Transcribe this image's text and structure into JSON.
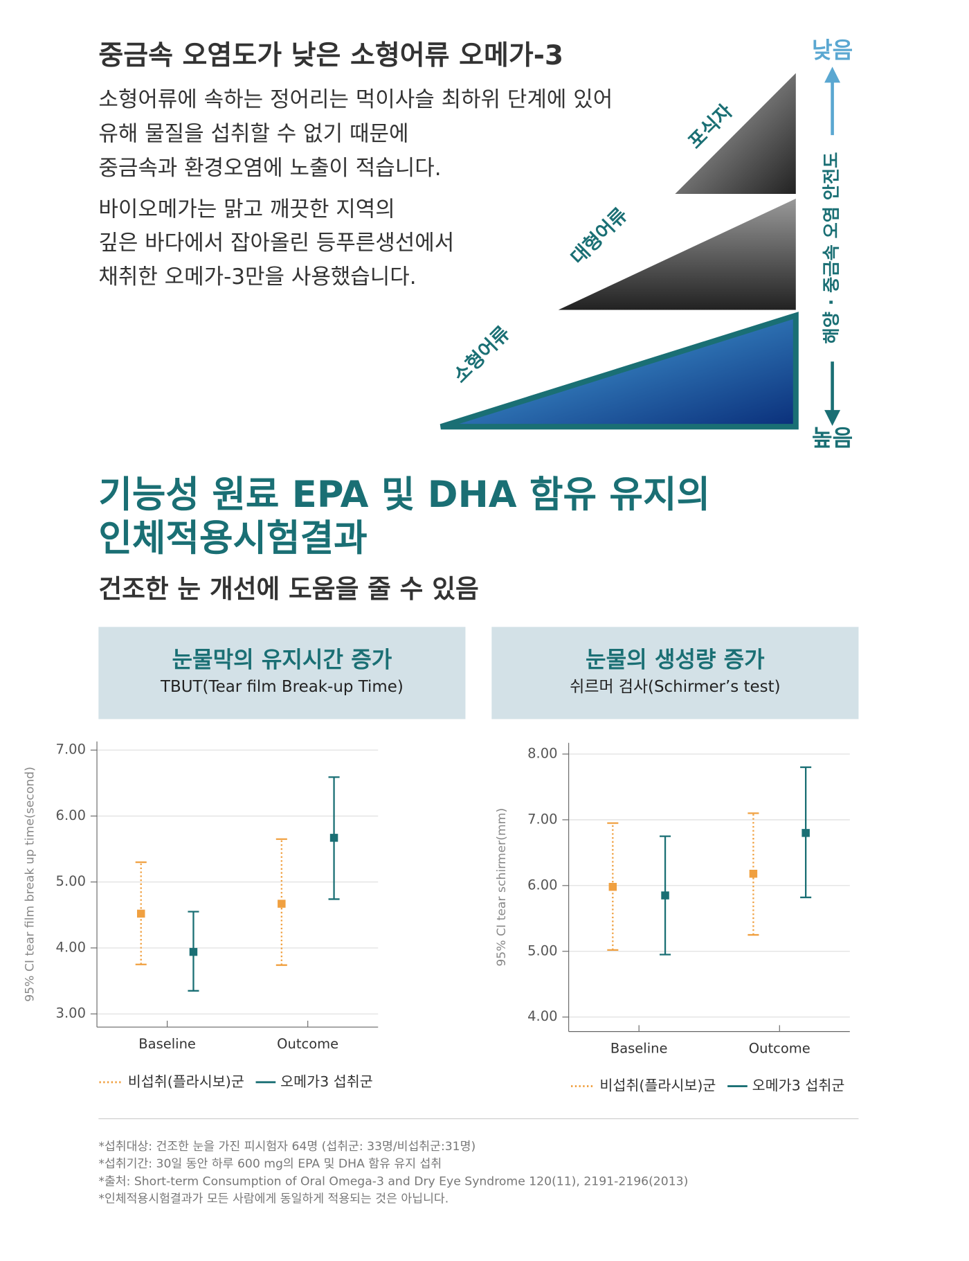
{
  "intro": {
    "title": "중금속 오염도가 낮은 소형어류 오메가-3",
    "lines": [
      "소형어류에 속하는 정어리는 먹이사슬 최하위 단계에 있어",
      "유해 물질을 섭취할 수 없기 때문에",
      "중금속과 환경오염에 노출이 적습니다.",
      "바이오메가는 맑고 깨끗한 지역의",
      "깊은 바다에서 잡아올린 등푸른생선에서",
      "채취한 오메가-3만을 사용했습니다."
    ]
  },
  "pyramid": {
    "levels": [
      "포식자",
      "대형어류",
      "소형어류"
    ],
    "axis_top": "낮음",
    "axis_label": "해양 · 중금속 오염 안전도",
    "axis_bottom": "높음"
  },
  "section": {
    "title_lines": [
      "기능성 원료 EPA 및 DHA 함유 유지의",
      "인체적용시험결과"
    ],
    "subtitle": "건조한 눈 개선에 도움을 줄 수 있음"
  },
  "chart_data": [
    {
      "type": "errorbar",
      "title": "눈물막의 유지시간 증가",
      "subtitle": "TBUT(Tear film Break-up Time)",
      "y_label": "95% CI tear film break up time(second)",
      "categories": [
        "Baseline",
        "Outcome"
      ],
      "series": [
        {
          "name": "비섭취(플라시보)군",
          "color": "#f0a040",
          "linestyle": "dotted",
          "values": [
            4.52,
            4.67
          ],
          "lower": [
            3.75,
            3.74
          ],
          "upper": [
            5.3,
            5.65
          ]
        },
        {
          "name": "오메가3 섭취군",
          "color": "#1a6f74",
          "linestyle": "solid",
          "values": [
            3.94,
            5.67
          ],
          "lower": [
            3.35,
            4.74
          ],
          "upper": [
            4.55,
            6.59
          ]
        }
      ],
      "ylim": [
        2.8,
        7.13
      ],
      "yticks": [
        {
          "value": 3,
          "label": "3.00"
        },
        {
          "value": 4,
          "label": "4.00"
        },
        {
          "value": 5,
          "label": "5.00"
        },
        {
          "value": 6,
          "label": "6.00"
        },
        {
          "value": 7,
          "label": "7.00"
        }
      ],
      "grid": true
    },
    {
      "type": "errorbar",
      "title": "눈물의 생성량 증가",
      "subtitle": "쉬르머 검사(Schirmer’s test)",
      "y_label": "95% CI tear schirmer(mm)",
      "categories": [
        "Baseline",
        "Outcome"
      ],
      "series": [
        {
          "name": "비섭취(플라시보)군",
          "color": "#f0a040",
          "linestyle": "dotted",
          "values": [
            5.98,
            6.18
          ],
          "lower": [
            5.02,
            5.25
          ],
          "upper": [
            6.95,
            7.1
          ]
        },
        {
          "name": "오메가3 섭취군",
          "color": "#1a6f74",
          "linestyle": "solid",
          "values": [
            5.85,
            6.8
          ],
          "lower": [
            4.95,
            5.82
          ],
          "upper": [
            6.75,
            7.8
          ]
        }
      ],
      "ylim": [
        3.78,
        8.17
      ],
      "yticks": [
        {
          "value": 4,
          "label": "4.00"
        },
        {
          "value": 5,
          "label": "5.00"
        },
        {
          "value": 6,
          "label": "6.00"
        },
        {
          "value": 7,
          "label": "7.00"
        },
        {
          "value": 8,
          "label": "8.00"
        }
      ],
      "grid": true
    }
  ],
  "footnotes": [
    "*섭취대상: 건조한 눈을 가진 피시험자 64명 (섭취군: 33명/비섭취군:31명)",
    "*섭취기간: 30일 동안 하루 600 mg의 EPA 및 DHA 함유 유지 섭취",
    "*출처: Short-term Consumption of Oral Omega-3 and Dry Eye Syndrome 120(11), 2191-2196(2013)",
    "*인체적용시험결과가 모든 사람에게 동일하게 적용되는 것은 아닙니다."
  ]
}
